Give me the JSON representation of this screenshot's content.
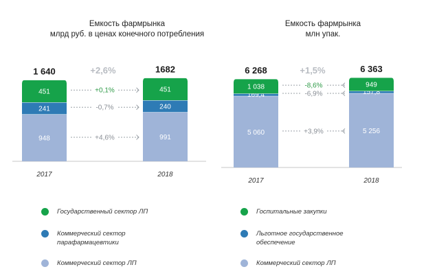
{
  "colors": {
    "green": "#16a34a",
    "blue": "#2e7bb5",
    "light": "#9fb4d8",
    "positive": "#2e9a47",
    "neutral": "#8a8f96",
    "axis": "#c7c7c7"
  },
  "chart_data": [
    {
      "type": "bar",
      "stacked": true,
      "title": "Емкость фармрынка\nмлрд руб. в ценах конечного потребления",
      "categories": [
        "2017",
        "2018"
      ],
      "series": [
        {
          "name": "Коммерческий сектор ЛП",
          "values": [
            948,
            991
          ],
          "labels": [
            "948",
            "991"
          ]
        },
        {
          "name": "Коммерческий сектор парафармацевтики",
          "values": [
            241,
            240
          ],
          "labels": [
            "241",
            "240"
          ]
        },
        {
          "name": "Государственный сектор ЛП",
          "values": [
            451,
            451
          ],
          "labels": [
            "451",
            "451"
          ]
        }
      ],
      "totals": [
        "1 640",
        "1682"
      ],
      "total_change": "+2,6%",
      "segment_changes": [
        "-0,7%",
        "+0,1%",
        "+4,6%"
      ],
      "ylim": [
        0,
        1682
      ]
    },
    {
      "type": "bar",
      "stacked": true,
      "title": "Емкость фармрынка\nмлн упак.",
      "categories": [
        "2017",
        "2018"
      ],
      "series": [
        {
          "name": "Коммерческий сектор ЛП",
          "values": [
            5060,
            5256
          ],
          "labels": [
            "5 060",
            "5 256"
          ]
        },
        {
          "name": "Льготное государственное обеспечение",
          "values": [
            169.4,
            157.8
          ],
          "labels": [
            "169,4",
            "157,8"
          ]
        },
        {
          "name": "Госпитальные закупки",
          "values": [
            1038,
            949
          ],
          "labels": [
            "1 038",
            "949"
          ]
        }
      ],
      "totals": [
        "6 268",
        "6 363"
      ],
      "total_change": "+1,5%",
      "segment_changes": [
        "-6,9%",
        "-8,6%",
        "+3,9%"
      ],
      "ylim": [
        0,
        6363
      ]
    }
  ],
  "legend_left": [
    {
      "label": "Государственный сектор ЛП",
      "color": "#16a34a"
    },
    {
      "label": "Коммерческий сектор\nпарафармацевтики",
      "color": "#2e7bb5"
    },
    {
      "label": "Коммерческий сектор ЛП",
      "color": "#9fb4d8"
    }
  ],
  "legend_right": [
    {
      "label": "Госпитальные закупки",
      "color": "#16a34a"
    },
    {
      "label": "Льготное государственное\nобеспечение",
      "color": "#2e7bb5"
    },
    {
      "label": "Коммерческий сектор ЛП",
      "color": "#9fb4d8"
    }
  ]
}
